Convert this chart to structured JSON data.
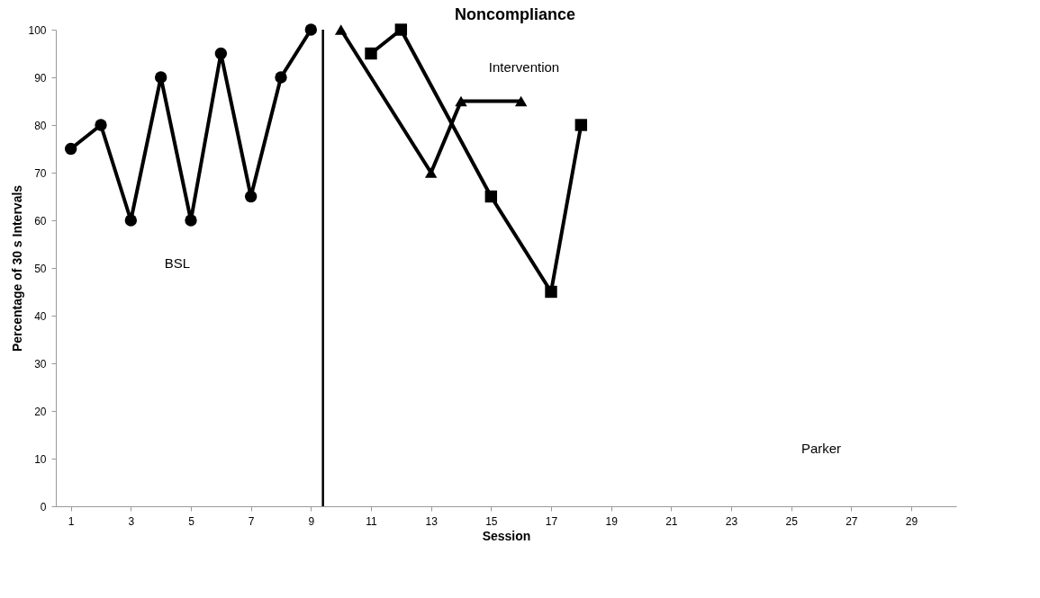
{
  "chart_data": {
    "type": "line",
    "title": "Noncompliance",
    "xlabel": "Session",
    "ylabel": "Percentage of 30 s Intervals",
    "series": [
      {
        "color": "#000000",
        "marker": "circle",
        "x": [
          1,
          2,
          3,
          4,
          5,
          6,
          7,
          8,
          9
        ],
        "values": [
          75,
          80,
          60,
          90,
          60,
          95,
          65,
          90,
          100
        ]
      },
      {
        "color": "#000000",
        "marker": "triangle",
        "x": [
          10,
          13,
          14,
          16
        ],
        "values": [
          100,
          70,
          85,
          85
        ]
      },
      {
        "color": "#000000",
        "marker": "square",
        "x": [
          11,
          12,
          15,
          17,
          18
        ],
        "values": [
          95,
          100,
          65,
          45,
          80
        ]
      }
    ],
    "xlim": [
      0.5,
      30.5
    ],
    "xticks": [
      1,
      3,
      5,
      7,
      9,
      11,
      13,
      15,
      17,
      19,
      21,
      23,
      25,
      27,
      29
    ],
    "ylim": [
      0,
      100
    ],
    "yticks": [
      0,
      10,
      20,
      30,
      40,
      50,
      60,
      70,
      80,
      90,
      100
    ],
    "grid": false,
    "line_style": "solid",
    "ref_lines": [
      {
        "axis": "x",
        "value": 9.4,
        "color": "#000000"
      }
    ],
    "annotations": [
      "BSL",
      "Intervention",
      "Parker"
    ]
  }
}
